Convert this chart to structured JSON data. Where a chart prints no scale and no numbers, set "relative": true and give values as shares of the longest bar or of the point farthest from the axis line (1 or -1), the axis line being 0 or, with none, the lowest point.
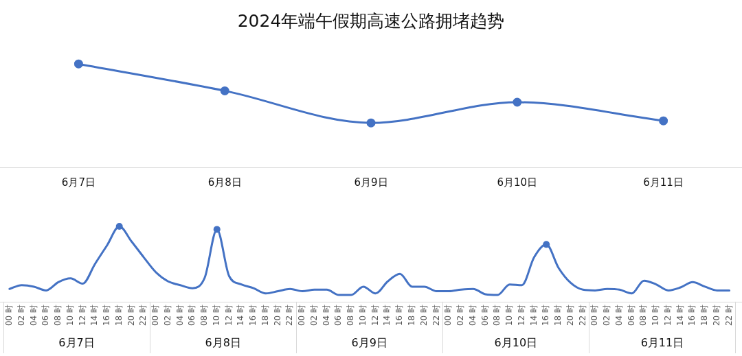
{
  "chart_data": [
    {
      "type": "line",
      "title": "2024年端午假期高速公路拥堵趋势",
      "relative": true,
      "categories": [
        "6月7日",
        "6月8日",
        "6月9日",
        "6月10日",
        "6月11日"
      ],
      "series": [
        {
          "color": "#4472c4",
          "values": [
            1,
            0.74,
            0.43,
            0.63,
            0.45
          ]
        }
      ],
      "marker": "circle",
      "grid": false,
      "legend": false
    },
    {
      "type": "line",
      "relative": true,
      "categories": [
        "00 时",
        "02 时",
        "04 时",
        "06 时",
        "08 时",
        "10 时",
        "12 时",
        "14 时",
        "16 时",
        "18 时",
        "20 时",
        "22 时",
        "00 时",
        "02 时",
        "04 时",
        "06 时",
        "08 时",
        "10 时",
        "12 时",
        "14 时",
        "16 时",
        "18 时",
        "20 时",
        "22 时",
        "00 时",
        "02 时",
        "04 时",
        "06 时",
        "08 时",
        "10 时",
        "12 时",
        "14 时",
        "16 时",
        "18 时",
        "20 时",
        "22 时",
        "00 时",
        "02 时",
        "04 时",
        "06 时",
        "08 时",
        "10 时",
        "12 时",
        "14 时",
        "16 时",
        "18 时",
        "20 时",
        "22 时",
        "00 时",
        "02 时",
        "04 时",
        "06 时",
        "08 时",
        "10 时",
        "12 时",
        "14 时",
        "16 时",
        "18 时",
        "20 时",
        "22 时"
      ],
      "series": [
        {
          "color": "#4472c4",
          "marker": "none",
          "values": [
            0.17,
            0.22,
            0.2,
            0.15,
            0.26,
            0.31,
            0.24,
            0.5,
            0.75,
            1,
            0.8,
            0.59,
            0.39,
            0.27,
            0.22,
            0.18,
            0.32,
            0.96,
            0.34,
            0.23,
            0.18,
            0.11,
            0.14,
            0.17,
            0.14,
            0.16,
            0.16,
            0.09,
            0.09,
            0.2,
            0.11,
            0.27,
            0.37,
            0.2,
            0.2,
            0.14,
            0.14,
            0.16,
            0.17,
            0.1,
            0.09,
            0.23,
            0.22,
            0.59,
            0.76,
            0.45,
            0.25,
            0.16,
            0.15,
            0.17,
            0.16,
            0.11,
            0.28,
            0.23,
            0.15,
            0.19,
            0.26,
            0.2,
            0.15,
            0.15
          ]
        },
        {
          "type": "scatter",
          "color": "#4472c4",
          "marker": "circle",
          "values": [
            null,
            null,
            null,
            null,
            null,
            null,
            null,
            null,
            null,
            1,
            null,
            null,
            null,
            null,
            null,
            null,
            null,
            0.96,
            null,
            null,
            null,
            null,
            null,
            null,
            null,
            null,
            null,
            null,
            null,
            null,
            null,
            null,
            null,
            null,
            null,
            null,
            null,
            null,
            null,
            null,
            null,
            null,
            null,
            null,
            0.76,
            null,
            null,
            null,
            null,
            null,
            null,
            null,
            null,
            null,
            null,
            null,
            null,
            null,
            null,
            null
          ]
        }
      ],
      "annotations": [
        "6月7日",
        "6月8日",
        "6月9日",
        "6月10日",
        "6月11日"
      ],
      "grid": false,
      "legend": false
    }
  ]
}
